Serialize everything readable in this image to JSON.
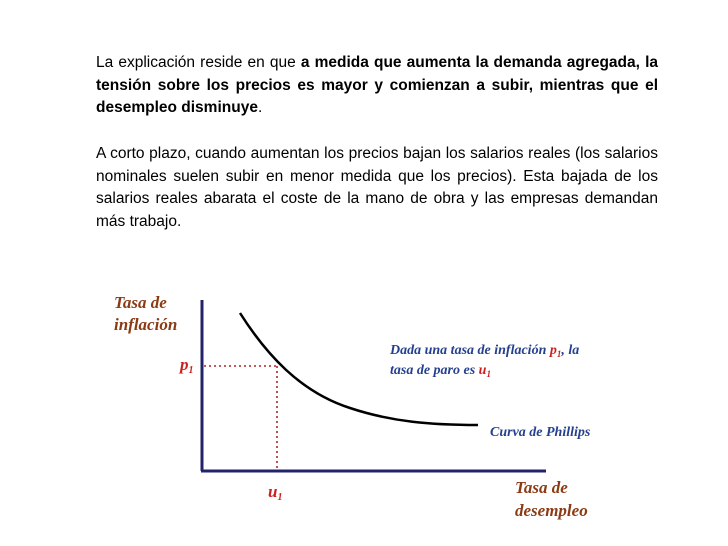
{
  "paragraph1": {
    "lead": "La explicación reside en que ",
    "bold": "a medida que aumenta la demanda agregada, la tensión sobre los precios es mayor y comienzan a subir, mientras que el desempleo disminuye",
    "trail": "."
  },
  "paragraph2": "A corto plazo, cuando aumentan los precios bajan los salarios reales (los salarios nominales suelen subir en menor medida que los precios). Esta bajada de los salarios reales abarata el coste de la mano de obra y las empresas demandan más trabajo.",
  "diagram": {
    "y_axis_label": [
      "Tasa de",
      "inflación"
    ],
    "x_axis_label": [
      "Tasa de",
      "desempleo"
    ],
    "p_label": "p",
    "p_sub": "1",
    "u_label": "u",
    "u_sub": "1",
    "annotation": {
      "line1_pre": "Dada una tasa de inflación ",
      "line1_var": "p",
      "line1_sub": "1",
      "line1_post": ", la",
      "line2_pre": "tasa de paro es ",
      "line2_var": "u",
      "line2_sub": "1"
    },
    "curve_label": "Curva de Phillips",
    "colors": {
      "brown": "#8b3a14",
      "blue": "#24408e",
      "red": "#cc1f1f",
      "axis": "#23236b",
      "curve": "#000000"
    }
  }
}
